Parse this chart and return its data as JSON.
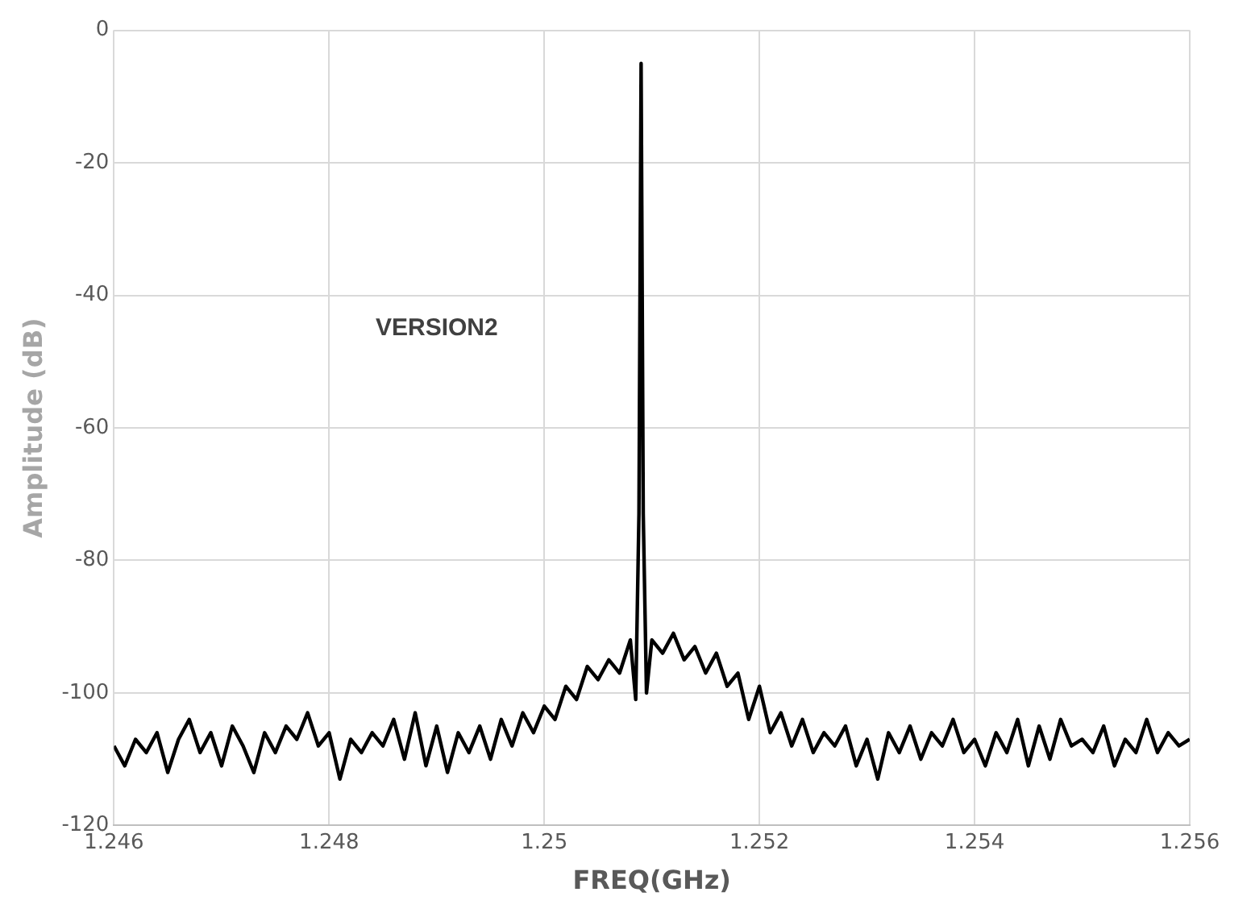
{
  "chart_data": {
    "type": "line",
    "xlabel": "FREQ(GHz)",
    "ylabel": "Amplitude (dB)",
    "annotations": [
      "VERSION2"
    ],
    "xlim": [
      1.246,
      1.256
    ],
    "xticks": [
      1.246,
      1.248,
      1.25,
      1.252,
      1.254,
      1.256
    ],
    "ylim": [
      -120,
      0
    ],
    "yticks": [
      -120,
      -100,
      -80,
      -60,
      -40,
      -20,
      0
    ],
    "grid": true,
    "legend": false,
    "marker": "none",
    "line_style": "solid",
    "series": [
      {
        "color": "#000000",
        "x": [
          1.246,
          1.2461,
          1.2462,
          1.2463,
          1.2464,
          1.2465,
          1.2466,
          1.2467,
          1.2468,
          1.2469,
          1.247,
          1.2471,
          1.2472,
          1.2473,
          1.2474,
          1.2475,
          1.2476,
          1.2477,
          1.2478,
          1.2479,
          1.248,
          1.2481,
          1.2482,
          1.2483,
          1.2484,
          1.2485,
          1.2486,
          1.2487,
          1.2488,
          1.2489,
          1.249,
          1.2491,
          1.2492,
          1.2493,
          1.2494,
          1.2495,
          1.2496,
          1.2497,
          1.2498,
          1.2499,
          1.25,
          1.2501,
          1.2502,
          1.2503,
          1.2504,
          1.2505,
          1.2506,
          1.2507,
          1.2508,
          1.25085,
          1.25088,
          1.2509,
          1.25092,
          1.25095,
          1.251,
          1.2511,
          1.2512,
          1.2513,
          1.2514,
          1.2515,
          1.2516,
          1.2517,
          1.2518,
          1.2519,
          1.252,
          1.2521,
          1.2522,
          1.2523,
          1.2524,
          1.2525,
          1.2526,
          1.2527,
          1.2528,
          1.2529,
          1.253,
          1.2531,
          1.2532,
          1.2533,
          1.2534,
          1.2535,
          1.2536,
          1.2537,
          1.2538,
          1.2539,
          1.254,
          1.2541,
          1.2542,
          1.2543,
          1.2544,
          1.2545,
          1.2546,
          1.2547,
          1.2548,
          1.2549,
          1.255,
          1.2551,
          1.2552,
          1.2553,
          1.2554,
          1.2555,
          1.2556,
          1.2557,
          1.2558,
          1.2559,
          1.256
        ],
        "values": [
          -108,
          -111,
          -107,
          -109,
          -106,
          -112,
          -107,
          -104,
          -109,
          -106,
          -111,
          -105,
          -108,
          -112,
          -106,
          -109,
          -105,
          -107,
          -103,
          -108,
          -106,
          -113,
          -107,
          -109,
          -106,
          -108,
          -104,
          -110,
          -103,
          -111,
          -105,
          -112,
          -106,
          -109,
          -105,
          -110,
          -104,
          -108,
          -103,
          -106,
          -102,
          -104,
          -99,
          -101,
          -96,
          -98,
          -95,
          -97,
          -92,
          -101,
          -73,
          -5,
          -73,
          -100,
          -92,
          -94,
          -91,
          -95,
          -93,
          -97,
          -94,
          -99,
          -97,
          -104,
          -99,
          -106,
          -103,
          -108,
          -104,
          -109,
          -106,
          -108,
          -105,
          -111,
          -107,
          -113,
          -106,
          -109,
          -105,
          -110,
          -106,
          -108,
          -104,
          -109,
          -107,
          -111,
          -106,
          -109,
          -104,
          -111,
          -105,
          -110,
          -104,
          -108,
          -107,
          -109,
          -105,
          -111,
          -107,
          -109,
          -104,
          -109,
          -106,
          -108,
          -107
        ]
      }
    ]
  }
}
